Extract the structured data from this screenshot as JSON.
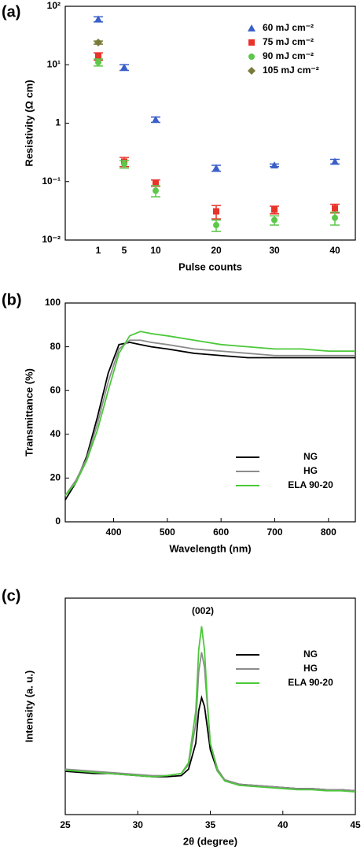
{
  "chart_data": [
    {
      "type": "scatter",
      "panel_label": "(a)",
      "x_label": "Pulse counts",
      "y_label": "Resistivity (Ω cm)",
      "categories": [
        "1",
        "5",
        "10",
        "20",
        "30",
        "40"
      ],
      "ylog": true,
      "ylim": [
        0.01,
        100
      ],
      "yticks": [
        {
          "value": 0.01,
          "label": "10⁻²"
        },
        {
          "value": 0.1,
          "label": "10⁻¹"
        },
        1,
        {
          "value": 10,
          "label": "10¹"
        },
        {
          "value": 100,
          "label": "10²"
        }
      ],
      "legend": "upper right",
      "series": [
        {
          "name": "60 mJ cm⁻²",
          "color": "#3a5fc8",
          "marker": "triangle",
          "values": [
            60,
            9,
            1.15,
            0.17,
            0.19,
            0.22
          ],
          "errors": [
            6,
            1,
            0.12,
            0.02,
            0.01,
            0.02
          ]
        },
        {
          "name": "75 mJ cm⁻²",
          "color": "#e8332a",
          "marker": "square",
          "values": [
            14,
            0.22,
            0.095,
            0.031,
            0.033,
            0.035
          ],
          "errors": [
            2,
            0.04,
            0.012,
            0.008,
            0.005,
            0.006
          ]
        },
        {
          "name": "90 mJ cm⁻²",
          "color": "#5cc84a",
          "marker": "circle",
          "values": [
            11,
            0.2,
            0.07,
            0.018,
            0.022,
            0.024
          ],
          "errors": [
            1.5,
            0.03,
            0.015,
            0.004,
            0.004,
            0.006
          ]
        },
        {
          "name": "105 mJ cm⁻²",
          "color": "#7a7a3a",
          "marker": "diamond",
          "values": [
            24,
            null,
            null,
            null,
            null,
            null
          ],
          "errors": [
            1.5,
            null,
            null,
            null,
            null,
            null
          ]
        }
      ]
    },
    {
      "type": "line",
      "panel_label": "(b)",
      "x_label": "Wavelength (nm)",
      "y_label": "Transmittance (%)",
      "x": [
        310,
        330,
        350,
        370,
        390,
        410,
        430,
        450,
        470,
        500,
        550,
        600,
        650,
        700,
        750,
        800,
        850
      ],
      "xlim": [
        310,
        850
      ],
      "xticks": [
        400,
        500,
        600,
        700,
        800
      ],
      "ylim": [
        0,
        100
      ],
      "yticks": [
        0,
        20,
        40,
        60,
        80,
        100
      ],
      "legend": "lower right",
      "series": [
        {
          "name": "NG",
          "color": "#000000",
          "values": [
            10,
            18,
            30,
            48,
            68,
            81,
            82,
            81,
            80,
            79,
            77,
            76,
            75,
            75,
            75,
            75,
            75
          ]
        },
        {
          "name": "HG",
          "color": "#8c8c8c",
          "values": [
            12,
            19,
            29,
            45,
            64,
            79,
            83,
            83,
            82,
            81,
            79,
            78,
            77,
            76,
            76,
            76,
            76
          ]
        },
        {
          "name": "ELA 90-20",
          "color": "#4cc83a",
          "values": [
            12,
            18,
            28,
            42,
            60,
            77,
            85,
            87,
            86,
            85,
            83,
            81,
            80,
            79,
            79,
            78,
            78
          ]
        }
      ]
    },
    {
      "type": "line",
      "panel_label": "(c)",
      "x_label": "2θ (degree)",
      "y_label": "Intensity (a. u.)",
      "annotation": "(002)",
      "x": [
        25,
        26,
        27,
        28,
        29,
        30,
        31,
        32,
        33,
        33.5,
        34,
        34.2,
        34.4,
        34.6,
        34.8,
        35,
        35.5,
        36,
        37,
        38,
        39,
        40,
        41,
        42,
        43,
        44,
        45
      ],
      "xlim": [
        25,
        45
      ],
      "xticks": [
        25,
        30,
        35,
        40,
        45
      ],
      "ylim": [
        0,
        100
      ],
      "yticks": [],
      "legend": "upper right",
      "series": [
        {
          "name": "NG",
          "color": "#000000",
          "values": [
            20,
            19.5,
            19,
            19,
            18.5,
            18,
            17.5,
            17.5,
            18,
            21,
            33,
            48,
            54,
            50,
            40,
            30,
            20,
            16,
            14,
            13.5,
            13,
            12.5,
            12,
            12,
            11.5,
            11.5,
            11
          ]
        },
        {
          "name": "HG",
          "color": "#8c8c8c",
          "values": [
            21,
            20.5,
            20,
            19.5,
            19,
            18.5,
            18,
            18,
            19,
            23,
            42,
            66,
            75,
            68,
            50,
            33,
            21,
            16,
            14,
            13.5,
            13,
            12.5,
            12,
            12,
            11.5,
            11.5,
            11
          ]
        },
        {
          "name": "ELA 90-20",
          "color": "#4cc83a",
          "values": [
            20.5,
            20,
            19.5,
            19,
            18.5,
            18,
            17.5,
            18,
            19,
            24,
            48,
            76,
            87,
            76,
            52,
            33,
            20,
            15.5,
            13.5,
            13,
            12.5,
            12,
            11.5,
            11.5,
            11,
            11,
            10.5
          ]
        }
      ]
    }
  ]
}
